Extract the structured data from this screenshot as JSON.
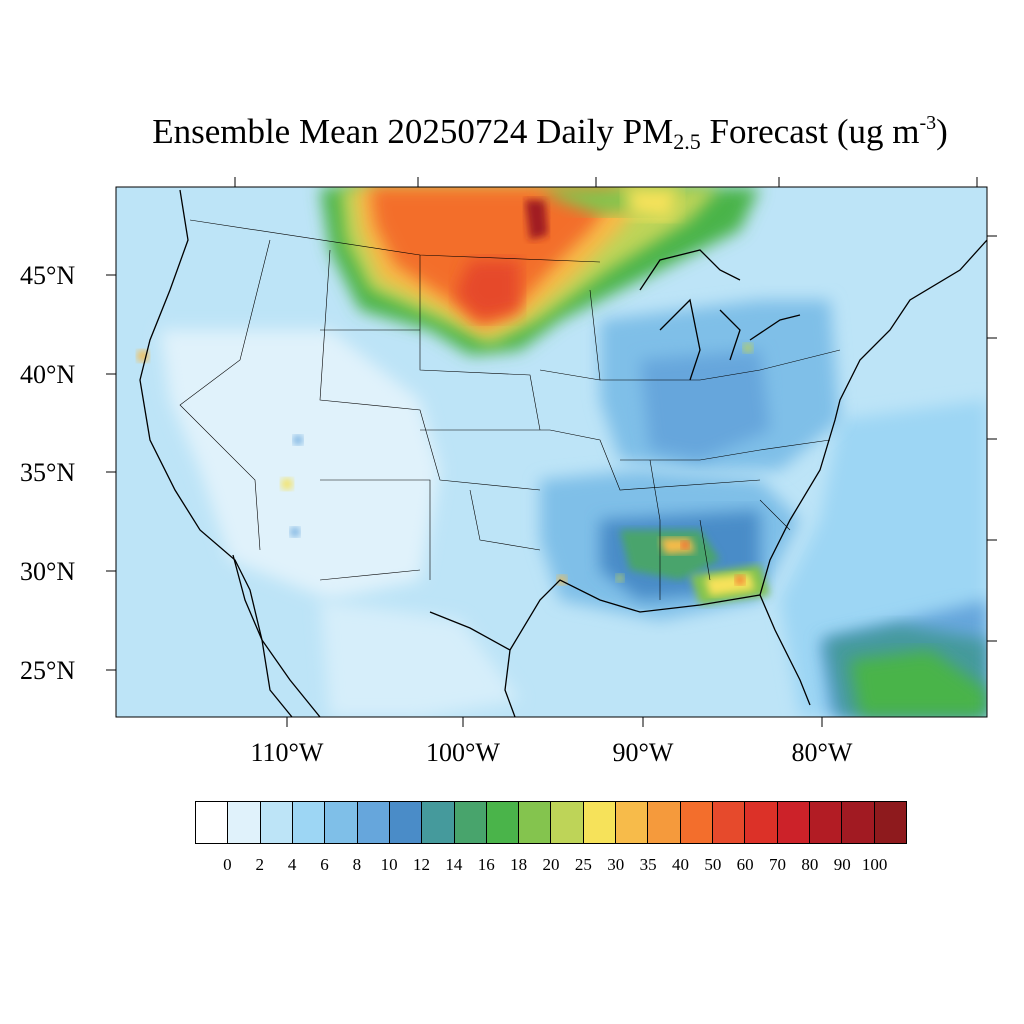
{
  "title": {
    "main": "Ensemble Mean 20250724 Daily PM",
    "sub": "2.5",
    "tail": " Forecast (ug m",
    "sup": "-3",
    "end": ")"
  },
  "lat_labels": [
    "45°N",
    "40°N",
    "35°N",
    "30°N",
    "25°N"
  ],
  "lon_labels": [
    "110°W",
    "100°W",
    "90°W",
    "80°W"
  ],
  "colorbar": {
    "labels": [
      "0",
      "2",
      "4",
      "6",
      "8",
      "10",
      "12",
      "14",
      "16",
      "18",
      "20",
      "25",
      "30",
      "35",
      "40",
      "50",
      "60",
      "70",
      "80",
      "90",
      "100"
    ],
    "colors": [
      "#ffffff",
      "#e0f2fb",
      "#bde4f7",
      "#9dd6f4",
      "#7fbfe8",
      "#66a6dc",
      "#4a8cc8",
      "#459a9c",
      "#48a46c",
      "#4ab44a",
      "#84c44e",
      "#bed458",
      "#f6e25a",
      "#f7bb4a",
      "#f59a3c",
      "#f36e2c",
      "#e64a2c",
      "#dc3128",
      "#cc2229",
      "#b21c24",
      "#a11a22",
      "#8e1a1d"
    ]
  }
}
